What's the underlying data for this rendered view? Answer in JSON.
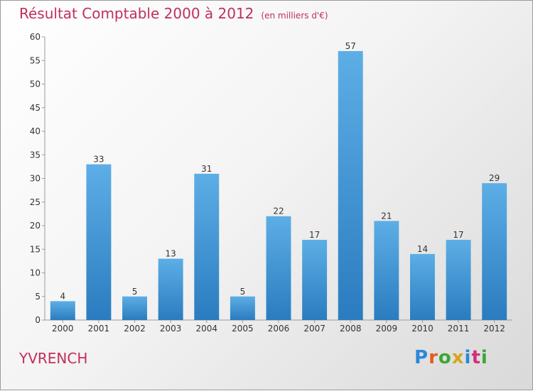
{
  "header": {
    "title": "Résultat Comptable 2000 à 2012",
    "unit": "(en milliers d'€)"
  },
  "footer": {
    "commune": "YVRENCH",
    "logo_text": "Proxiti"
  },
  "colors": {
    "title": "#c0305a",
    "bar_light": "#5daee6",
    "bar_dark": "#2a7cbf"
  },
  "chart_data": {
    "type": "bar",
    "categories": [
      "2000",
      "2001",
      "2002",
      "2003",
      "2004",
      "2005",
      "2006",
      "2007",
      "2008",
      "2009",
      "2010",
      "2011",
      "2012"
    ],
    "values": [
      4,
      33,
      5,
      13,
      31,
      5,
      22,
      17,
      57,
      21,
      14,
      17,
      29
    ],
    "title": "Résultat Comptable 2000 à 2012",
    "subtitle": "(en milliers d'€)",
    "xlabel": "",
    "ylabel": "",
    "ylim": [
      0,
      60
    ],
    "yticks": [
      0,
      5,
      10,
      15,
      20,
      25,
      30,
      35,
      40,
      45,
      50,
      55,
      60
    ],
    "grid": false,
    "data_labels": true
  }
}
